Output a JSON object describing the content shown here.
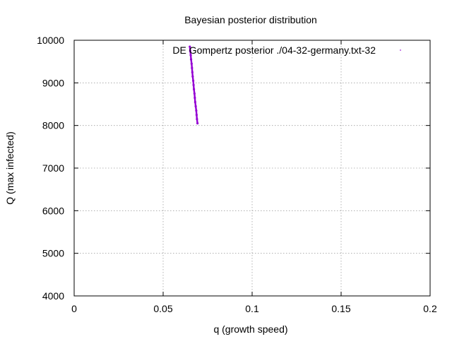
{
  "chart_data": {
    "type": "scatter",
    "title": "Bayesian posterior distribution",
    "xlabel": "q (growth speed)",
    "ylabel": "Q (max infected)",
    "xlim": [
      0,
      0.2
    ],
    "ylim": [
      4000,
      10000
    ],
    "x_ticks": [
      "0",
      "0.05",
      "0.1",
      "0.15",
      "0.2"
    ],
    "y_ticks": [
      "4000",
      "5000",
      "6000",
      "7000",
      "8000",
      "9000",
      "10000"
    ],
    "grid": true,
    "legend_position": "top-right",
    "series": [
      {
        "name": "DE Gompertz posterior ./04-32-germany.txt-32",
        "color": "#9400d3",
        "x": [
          0.065,
          0.0652,
          0.0655,
          0.0657,
          0.066,
          0.0662,
          0.0664,
          0.0666,
          0.0669,
          0.0671,
          0.0673,
          0.0676,
          0.0678,
          0.068,
          0.0683,
          0.0686,
          0.0688,
          0.069,
          0.0693
        ],
        "y": [
          9850,
          9750,
          9650,
          9550,
          9450,
          9350,
          9250,
          9150,
          9050,
          8950,
          8850,
          8750,
          8650,
          8550,
          8450,
          8350,
          8250,
          8150,
          8050
        ]
      }
    ]
  }
}
